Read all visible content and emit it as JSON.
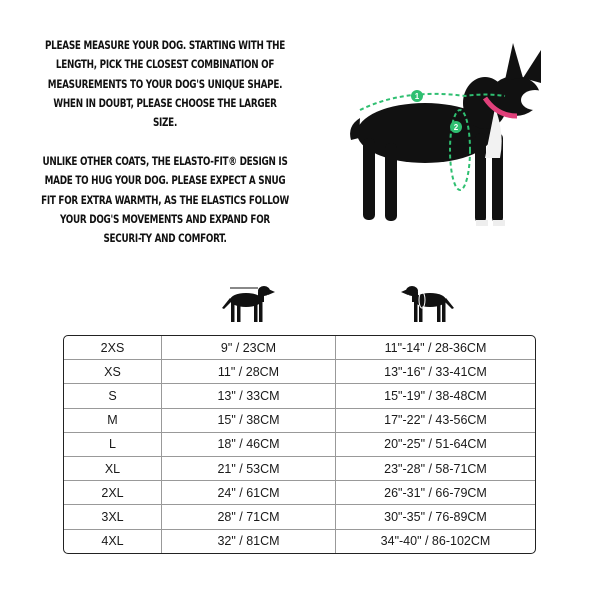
{
  "intro": {
    "paragraph1": "PLEASE MEASURE YOUR DOG. STARTING WITH THE LENGTH, PICK THE CLOSEST COMBINATION OF MEASUREMENTS TO YOUR DOG'S UNIQUE SHAPE. WHEN IN DOUBT, PLEASE CHOOSE THE LARGER SIZE.",
    "paragraph2": "UNLIKE OTHER COATS, THE ELASTO-FIT® DESIGN IS MADE TO HUG YOUR DOG. PLEASE EXPECT A SNUG FIT FOR EXTRA WARMTH, AS THE ELASTICS FOLLOW YOUR DOG'S MOVEMENTS AND EXPAND FOR SECURI-TY AND COMFORT."
  },
  "photo": {
    "marker_length": "1",
    "marker_chest": "2",
    "measure_color": "#2fbf71",
    "collar_color": "#e0407a"
  },
  "column_icons": [
    "dog-length-icon",
    "dog-chest-icon"
  ],
  "size_table": {
    "rows": [
      [
        "2XS",
        "9\" / 23CM",
        "11\"-14\" / 28-36CM"
      ],
      [
        "XS",
        "11\" / 28CM",
        "13\"-16\" / 33-41CM"
      ],
      [
        "S",
        "13\" / 33CM",
        "15\"-19\" / 38-48CM"
      ],
      [
        "M",
        "15\" / 38CM",
        "17\"-22\" / 43-56CM"
      ],
      [
        "L",
        "18\" / 46CM",
        "20\"-25\" / 51-64CM"
      ],
      [
        "XL",
        "21\" / 53CM",
        "23\"-28\" / 58-71CM"
      ],
      [
        "2XL",
        "24\" / 61CM",
        "26\"-31\" / 66-79CM"
      ],
      [
        "3XL",
        "28\" / 71CM",
        "30\"-35\" / 76-89CM"
      ],
      [
        "4XL",
        "32\" / 81CM",
        "34\"-40\" / 86-102CM"
      ]
    ]
  }
}
